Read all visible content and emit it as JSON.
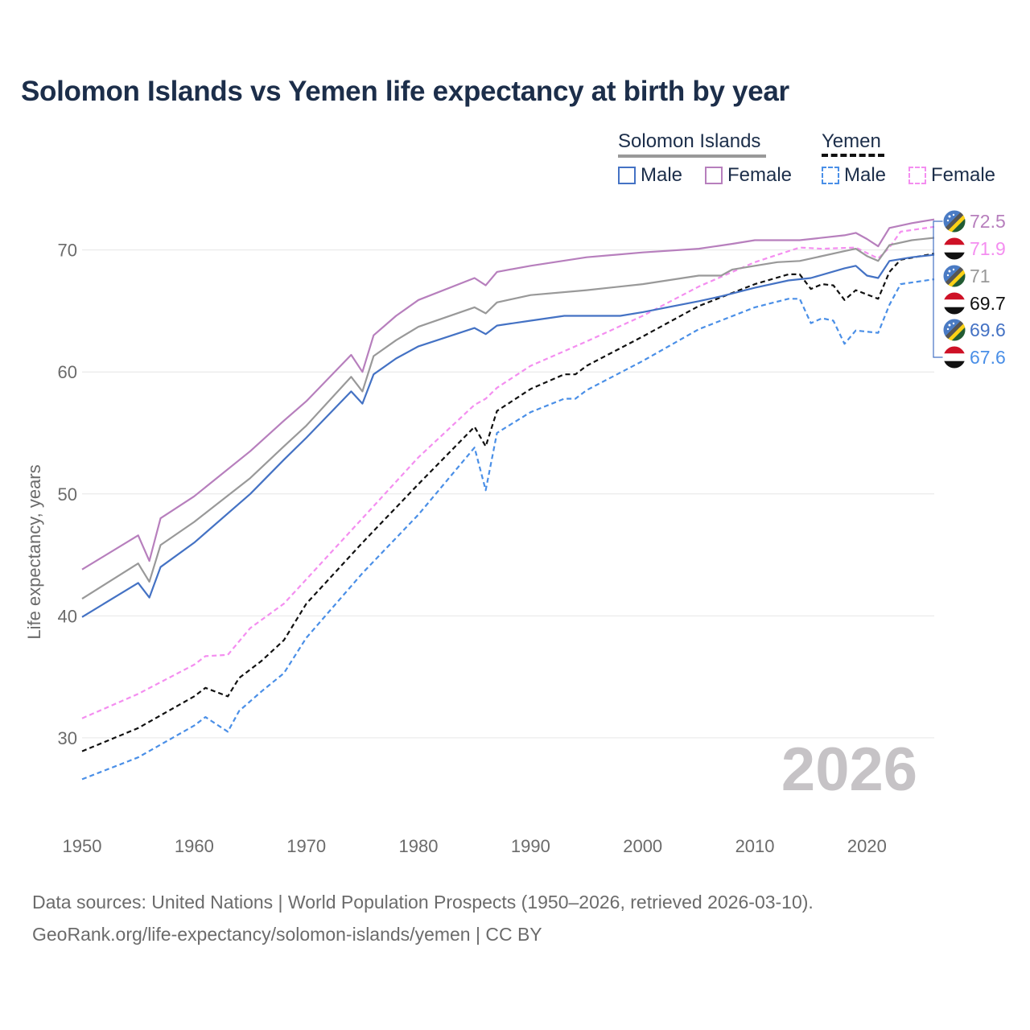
{
  "title": "Solomon Islands vs Yemen life expectancy at birth by year",
  "legend": {
    "groups": [
      {
        "country": "Solomon Islands",
        "line_style": "solid",
        "line_color": "#999999",
        "items": [
          {
            "label": "Male",
            "color": "#4472c4"
          },
          {
            "label": "Female",
            "color": "#b77fbd"
          }
        ]
      },
      {
        "country": "Yemen",
        "line_style": "dashed",
        "line_color": "#111111",
        "items": [
          {
            "label": "Male",
            "color": "#4a8fe7"
          },
          {
            "label": "Female",
            "color": "#f48ef0"
          }
        ]
      }
    ]
  },
  "year_watermark": "2026",
  "footer": {
    "line1": "Data sources: United Nations | World Population Prospects (1950–2026, retrieved 2026-03-10).",
    "line2": "GeoRank.org/life-expectancy/solomon-islands/yemen | CC BY"
  },
  "colors": {
    "solomon_male": "#4472c4",
    "solomon_female": "#b77fbd",
    "solomon_total": "#999999",
    "yemen_male": "#4a8fe7",
    "yemen_female": "#f48ef0",
    "yemen_total": "#111111",
    "title": "#1c2e4a",
    "grid": "#e6e6e6",
    "axis_text": "#6b6b6b"
  },
  "chart_data": {
    "type": "line",
    "title": "Solomon Islands vs Yemen life expectancy at birth by year",
    "xlabel": "",
    "ylabel": "Life expectancy, years",
    "xlim": [
      1950,
      2026
    ],
    "ylim": [
      23,
      74
    ],
    "x_ticks": [
      1950,
      1960,
      1970,
      1980,
      1990,
      2000,
      2010,
      2020
    ],
    "y_ticks": [
      30,
      40,
      50,
      60,
      70
    ],
    "grid": true,
    "series": [
      {
        "key": "solomon_female",
        "name": "Solomon Islands Female",
        "style": "solid",
        "end_label": "72.5",
        "flag": "solomon",
        "points": [
          [
            1950,
            43.8
          ],
          [
            1955,
            46.6
          ],
          [
            1956,
            44.5
          ],
          [
            1957,
            48
          ],
          [
            1960,
            49.8
          ],
          [
            1965,
            53.5
          ],
          [
            1968,
            56
          ],
          [
            1970,
            57.6
          ],
          [
            1974,
            61.4
          ],
          [
            1975,
            60
          ],
          [
            1976,
            63
          ],
          [
            1978,
            64.6
          ],
          [
            1980,
            65.9
          ],
          [
            1985,
            67.7
          ],
          [
            1986,
            67.1
          ],
          [
            1987,
            68.2
          ],
          [
            1990,
            68.7
          ],
          [
            1995,
            69.4
          ],
          [
            2000,
            69.8
          ],
          [
            2005,
            70.1
          ],
          [
            2008,
            70.5
          ],
          [
            2010,
            70.8
          ],
          [
            2014,
            70.8
          ],
          [
            2018,
            71.2
          ],
          [
            2019,
            71.4
          ],
          [
            2020,
            70.9
          ],
          [
            2021,
            70.3
          ],
          [
            2022,
            71.8
          ],
          [
            2024,
            72.2
          ],
          [
            2026,
            72.5
          ]
        ]
      },
      {
        "key": "yemen_female",
        "name": "Yemen Female",
        "style": "dashed",
        "end_label": "71.9",
        "flag": "yemen",
        "points": [
          [
            1950,
            31.6
          ],
          [
            1955,
            33.6
          ],
          [
            1960,
            36
          ],
          [
            1961,
            36.7
          ],
          [
            1963,
            36.8
          ],
          [
            1965,
            39
          ],
          [
            1968,
            41
          ],
          [
            1970,
            43
          ],
          [
            1975,
            48
          ],
          [
            1980,
            53
          ],
          [
            1985,
            57.3
          ],
          [
            1986,
            57.8
          ],
          [
            1987,
            58.7
          ],
          [
            1990,
            60.5
          ],
          [
            1995,
            62.5
          ],
          [
            2000,
            64.6
          ],
          [
            2005,
            67
          ],
          [
            2010,
            69
          ],
          [
            2014,
            70.2
          ],
          [
            2016,
            70.1
          ],
          [
            2019,
            70.2
          ],
          [
            2021,
            69.3
          ],
          [
            2022,
            70.2
          ],
          [
            2023,
            71.5
          ],
          [
            2026,
            71.9
          ]
        ]
      },
      {
        "key": "solomon_total",
        "name": "Solomon Islands",
        "style": "solid",
        "end_label": "71",
        "flag": "solomon",
        "points": [
          [
            1950,
            41.4
          ],
          [
            1955,
            44.3
          ],
          [
            1956,
            42.8
          ],
          [
            1957,
            45.8
          ],
          [
            1960,
            47.7
          ],
          [
            1965,
            51.3
          ],
          [
            1968,
            53.9
          ],
          [
            1970,
            55.6
          ],
          [
            1974,
            59.6
          ],
          [
            1975,
            58.4
          ],
          [
            1976,
            61.3
          ],
          [
            1978,
            62.6
          ],
          [
            1980,
            63.7
          ],
          [
            1985,
            65.3
          ],
          [
            1986,
            64.8
          ],
          [
            1987,
            65.7
          ],
          [
            1990,
            66.3
          ],
          [
            1995,
            66.7
          ],
          [
            2000,
            67.2
          ],
          [
            2005,
            67.9
          ],
          [
            2007,
            67.9
          ],
          [
            2008,
            68.4
          ],
          [
            2010,
            68.7
          ],
          [
            2012,
            69
          ],
          [
            2014,
            69.1
          ],
          [
            2018,
            69.9
          ],
          [
            2019,
            70.1
          ],
          [
            2020,
            69.5
          ],
          [
            2021,
            69.1
          ],
          [
            2022,
            70.4
          ],
          [
            2024,
            70.8
          ],
          [
            2026,
            71
          ]
        ]
      },
      {
        "key": "yemen_total",
        "name": "Yemen",
        "style": "dashed",
        "end_label": "69.7",
        "flag": "yemen",
        "points": [
          [
            1950,
            28.9
          ],
          [
            1955,
            30.8
          ],
          [
            1960,
            33.4
          ],
          [
            1961,
            34.1
          ],
          [
            1963,
            33.4
          ],
          [
            1964,
            34.9
          ],
          [
            1966,
            36.3
          ],
          [
            1968,
            38
          ],
          [
            1970,
            41
          ],
          [
            1975,
            46
          ],
          [
            1980,
            50.8
          ],
          [
            1985,
            55.5
          ],
          [
            1986,
            53.9
          ],
          [
            1987,
            56.8
          ],
          [
            1990,
            58.6
          ],
          [
            1993,
            59.8
          ],
          [
            1994,
            59.8
          ],
          [
            1995,
            60.5
          ],
          [
            2000,
            62.9
          ],
          [
            2005,
            65.4
          ],
          [
            2010,
            67.2
          ],
          [
            2013,
            68
          ],
          [
            2014,
            68
          ],
          [
            2015,
            66.8
          ],
          [
            2016,
            67.2
          ],
          [
            2017,
            67.1
          ],
          [
            2018,
            65.9
          ],
          [
            2019,
            66.7
          ],
          [
            2021,
            66
          ],
          [
            2022,
            68.2
          ],
          [
            2023,
            69.2
          ],
          [
            2026,
            69.7
          ]
        ]
      },
      {
        "key": "solomon_male",
        "name": "Solomon Islands Male",
        "style": "solid",
        "end_label": "69.6",
        "flag": "solomon",
        "points": [
          [
            1950,
            39.9
          ],
          [
            1955,
            42.7
          ],
          [
            1956,
            41.5
          ],
          [
            1957,
            44
          ],
          [
            1960,
            46
          ],
          [
            1965,
            50
          ],
          [
            1968,
            52.8
          ],
          [
            1970,
            54.6
          ],
          [
            1974,
            58.4
          ],
          [
            1975,
            57.4
          ],
          [
            1976,
            59.8
          ],
          [
            1978,
            61.1
          ],
          [
            1980,
            62.1
          ],
          [
            1985,
            63.6
          ],
          [
            1986,
            63.1
          ],
          [
            1987,
            63.8
          ],
          [
            1990,
            64.2
          ],
          [
            1993,
            64.6
          ],
          [
            1995,
            64.6
          ],
          [
            1998,
            64.6
          ],
          [
            2000,
            64.9
          ],
          [
            2005,
            65.8
          ],
          [
            2007,
            66.2
          ],
          [
            2010,
            66.9
          ],
          [
            2013,
            67.5
          ],
          [
            2015,
            67.7
          ],
          [
            2018,
            68.5
          ],
          [
            2019,
            68.7
          ],
          [
            2020,
            67.9
          ],
          [
            2021,
            67.7
          ],
          [
            2022,
            69.1
          ],
          [
            2024,
            69.4
          ],
          [
            2026,
            69.6
          ]
        ]
      },
      {
        "key": "yemen_male",
        "name": "Yemen Male",
        "style": "dashed",
        "end_label": "67.6",
        "flag": "yemen",
        "points": [
          [
            1950,
            26.6
          ],
          [
            1955,
            28.4
          ],
          [
            1960,
            31
          ],
          [
            1961,
            31.7
          ],
          [
            1963,
            30.5
          ],
          [
            1964,
            32.2
          ],
          [
            1966,
            33.8
          ],
          [
            1968,
            35.3
          ],
          [
            1970,
            38.2
          ],
          [
            1975,
            43.5
          ],
          [
            1980,
            48.3
          ],
          [
            1985,
            53.8
          ],
          [
            1986,
            50.3
          ],
          [
            1987,
            55
          ],
          [
            1990,
            56.7
          ],
          [
            1993,
            57.8
          ],
          [
            1994,
            57.8
          ],
          [
            1995,
            58.5
          ],
          [
            2000,
            60.9
          ],
          [
            2005,
            63.5
          ],
          [
            2010,
            65.3
          ],
          [
            2013,
            66
          ],
          [
            2014,
            66
          ],
          [
            2015,
            64
          ],
          [
            2016,
            64.4
          ],
          [
            2017,
            64.2
          ],
          [
            2018,
            62.3
          ],
          [
            2019,
            63.4
          ],
          [
            2021,
            63.2
          ],
          [
            2022,
            65.5
          ],
          [
            2023,
            67.2
          ],
          [
            2026,
            67.6
          ]
        ]
      }
    ]
  }
}
